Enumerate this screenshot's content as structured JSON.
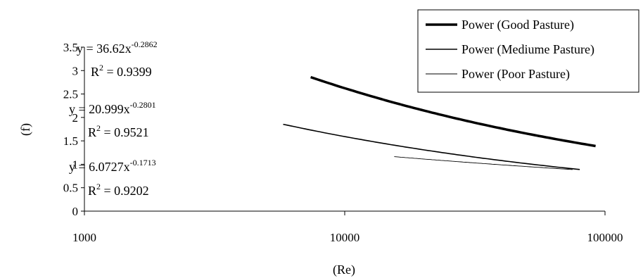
{
  "chart_data": {
    "type": "line",
    "title": "",
    "xlabel": "(Re)",
    "ylabel": "(f)",
    "x_scale": "log",
    "xlim": [
      1000,
      100000
    ],
    "ylim": [
      0,
      3.5
    ],
    "x_ticks": [
      "1000",
      "10000",
      "100000"
    ],
    "y_ticks": [
      "0",
      "0.5",
      "1",
      "1.5",
      "2",
      "2.5",
      "3",
      "3.5"
    ],
    "grid": false,
    "legend_position": "top-right",
    "series": [
      {
        "name": "Power (Good Pasture)",
        "coef": 36.62,
        "exponent": -0.2862,
        "x_range": [
          7400,
          92000
        ],
        "line_weight": "thick",
        "equation": {
          "lhs": "y = 36.62x",
          "exp": "-0.2862",
          "r2_label": "R",
          "r2_exp": "2",
          "r2_value": " = 0.9399"
        }
      },
      {
        "name": "Power (Mediume Pasture)",
        "coef": 20.999,
        "exponent": -0.2801,
        "x_range": [
          5800,
          80000
        ],
        "line_weight": "medium",
        "equation": {
          "lhs": "y = 20.999x",
          "exp": "-0.2801",
          "r2_label": "R",
          "r2_exp": "2",
          "r2_value": " = 0.9521"
        }
      },
      {
        "name": "Power (Poor Pasture)",
        "coef": 6.0727,
        "exponent": -0.1713,
        "x_range": [
          15500,
          75000
        ],
        "line_weight": "thin",
        "equation": {
          "lhs": "y = 6.0727x",
          "exp": "-0.1713",
          "r2_label": "R",
          "r2_exp": "2",
          "r2_value": " = 0.9202"
        }
      }
    ]
  }
}
